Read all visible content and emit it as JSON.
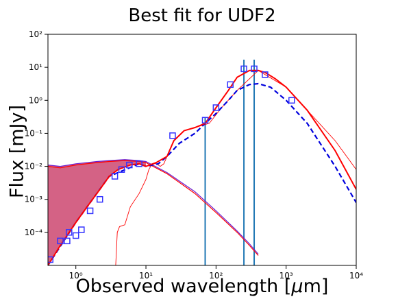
{
  "chart_data": {
    "type": "line",
    "title": "Best fit for UDF2",
    "xlabel": "Observed wavelength [μm]",
    "ylabel": "Flux [mJy]",
    "xscale": "log",
    "yscale": "log",
    "xlim": [
      0.4,
      10000
    ],
    "ylim": [
      1e-05,
      100
    ],
    "grid": false,
    "x_ticks": [
      {
        "value": 1,
        "label": "10⁰"
      },
      {
        "value": 10,
        "label": "10¹"
      },
      {
        "value": 100,
        "label": "10²"
      },
      {
        "value": 1000,
        "label": "10³"
      },
      {
        "value": 10000,
        "label": "10⁴"
      }
    ],
    "y_ticks": [
      {
        "value": 0.0001,
        "label": "10⁻⁴"
      },
      {
        "value": 0.001,
        "label": "10⁻³"
      },
      {
        "value": 0.01,
        "label": "10⁻²"
      },
      {
        "value": 0.1,
        "label": "10⁻¹"
      },
      {
        "value": 1,
        "label": "10⁰"
      },
      {
        "value": 10,
        "label": "10¹"
      },
      {
        "value": 100,
        "label": "10²"
      }
    ],
    "colors": {
      "model": "#ff0000",
      "dashed": "#0000dd",
      "purple": "#6a1fd0",
      "vertical": "#1f77b4",
      "fill_red": "#ff8080",
      "fill_purple": "#b03070",
      "points": "#3333ff"
    },
    "series": [
      {
        "style": "solid-red",
        "x": [
          0.4,
          0.6,
          1,
          1.6,
          2.2,
          3,
          4,
          6,
          8,
          10,
          14,
          20,
          25,
          35,
          50,
          70,
          100,
          150,
          200,
          300,
          400,
          500,
          700,
          1000,
          2000,
          5000,
          10000
        ],
        "y": [
          1e-05,
          4e-05,
          0.0002,
          0.0008,
          0.002,
          0.005,
          0.008,
          0.011,
          0.012,
          0.01,
          0.013,
          0.02,
          0.06,
          0.12,
          0.15,
          0.2,
          0.6,
          2,
          5,
          8,
          8,
          7,
          4.5,
          2.5,
          0.5,
          0.03,
          0.002
        ]
      },
      {
        "style": "dashed-blue",
        "x": [
          0.4,
          1,
          3,
          8,
          10,
          15,
          20,
          30,
          50,
          70,
          100,
          150,
          200,
          300,
          400,
          600,
          1000,
          2000,
          5000,
          10000
        ],
        "y": [
          1e-05,
          0.0002,
          0.005,
          0.012,
          0.01,
          0.012,
          0.02,
          0.05,
          0.1,
          0.2,
          0.4,
          1,
          2,
          3,
          3.2,
          2.5,
          1,
          0.2,
          0.01,
          0.0008
        ]
      },
      {
        "style": "thin-red",
        "x": [
          3.7,
          3.9,
          4.2,
          5,
          6,
          8,
          10,
          11,
          12,
          13,
          14,
          16,
          18,
          20,
          25,
          35,
          50,
          80,
          120,
          200,
          400,
          1000,
          2000,
          5000,
          10000
        ],
        "y": [
          1e-05,
          0.0001,
          0.00015,
          0.00017,
          0.0006,
          0.0015,
          0.004,
          0.008,
          0.011,
          0.012,
          0.012,
          0.01,
          0.012,
          0.02,
          0.06,
          0.12,
          0.15,
          0.2,
          0.6,
          2,
          8,
          2.5,
          0.5,
          0.06,
          0.008
        ]
      },
      {
        "style": "stellar-red",
        "x": [
          0.4,
          0.6,
          1,
          2,
          3,
          5,
          8,
          10,
          20,
          50,
          100,
          200,
          300,
          400
        ],
        "y": [
          0.01,
          0.009,
          0.011,
          0.013,
          0.014,
          0.015,
          0.014,
          0.013,
          0.006,
          0.0015,
          0.0004,
          0.0001,
          4e-05,
          2e-05
        ]
      },
      {
        "style": "stellar-purple",
        "x": [
          0.4,
          0.6,
          1,
          2,
          3,
          5,
          8,
          10,
          20,
          50,
          100,
          200,
          300,
          400
        ],
        "y": [
          0.011,
          0.01,
          0.012,
          0.014,
          0.015,
          0.016,
          0.015,
          0.014,
          0.0065,
          0.0017,
          0.00045,
          0.00011,
          4.5e-05,
          2.2e-05
        ]
      }
    ],
    "points": {
      "x": [
        0.43,
        0.6,
        0.75,
        0.8,
        1.0,
        1.2,
        1.6,
        2.2,
        3.6,
        4.5,
        5.8,
        8.0,
        24,
        70,
        100,
        160,
        250,
        350,
        500,
        1200
      ],
      "y": [
        1.5e-05,
        5.5e-05,
        5.5e-05,
        0.0001,
        8e-05,
        0.00012,
        0.00045,
        0.001,
        0.005,
        0.008,
        0.011,
        0.012,
        0.085,
        0.25,
        0.6,
        3,
        9,
        9,
        6,
        1
      ]
    },
    "vertical_lines": {
      "x": [
        70,
        250,
        350
      ],
      "y_top": [
        0.3,
        17,
        17
      ]
    }
  }
}
